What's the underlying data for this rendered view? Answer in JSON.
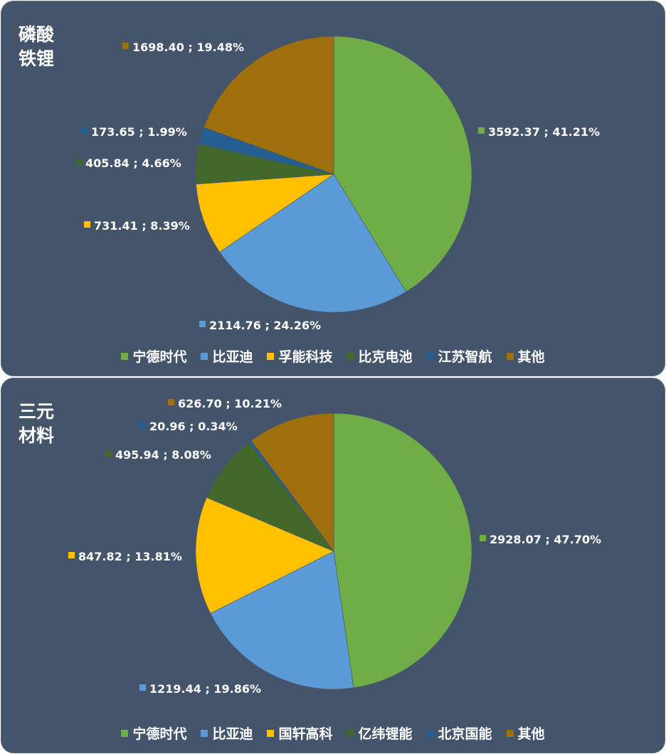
{
  "chart_data": [
    {
      "type": "pie",
      "title": "磷酸铁锂",
      "categories": [
        "宁德时代",
        "比亚迪",
        "孚能科技",
        "比克电池",
        "江苏智航",
        "其他"
      ],
      "values": [
        3592.37,
        2114.76,
        731.41,
        405.84,
        173.65,
        1698.4
      ],
      "percents": [
        "41.21%",
        "24.26%",
        "8.39%",
        "4.66%",
        "1.99%",
        "19.48%"
      ],
      "data_labels": [
        "3592.37 ; 41.21%",
        "2114.76 ; 24.26%",
        "731.41 ; 8.39%",
        "405.84 ; 4.66%",
        "173.65 ; 1.99%",
        "1698.40 ; 19.48%"
      ],
      "colors": [
        "#70ad47",
        "#5b9bd5",
        "#ffc000",
        "#43682b",
        "#255e91",
        "#9e6f0d"
      ],
      "legend": "bottom"
    },
    {
      "type": "pie",
      "title": "三元材料",
      "categories": [
        "宁德时代",
        "比亚迪",
        "国轩高科",
        "亿纬锂能",
        "北京国能",
        "其他"
      ],
      "values": [
        2928.07,
        1219.44,
        847.82,
        495.94,
        20.96,
        626.7
      ],
      "percents": [
        "47.70%",
        "19.86%",
        "13.81%",
        "8.08%",
        "0.34%",
        "10.21%"
      ],
      "data_labels": [
        "2928.07 ; 47.70%",
        "1219.44 ; 19.86%",
        "847.82 ; 13.81%",
        "495.94 ; 8.08%",
        "20.96 ; 0.34%",
        "626.70 ; 10.21%"
      ],
      "colors": [
        "#70ad47",
        "#5b9bd5",
        "#ffc000",
        "#43682b",
        "#255e91",
        "#9e6f0d"
      ],
      "legend": "bottom"
    }
  ]
}
